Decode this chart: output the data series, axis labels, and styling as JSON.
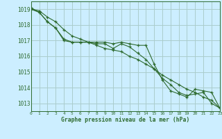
{
  "title": "Graphe pression niveau de la mer (hPa)",
  "background_color": "#cceeff",
  "grid_color": "#aacccc",
  "line_color": "#2d6a2d",
  "xlim": [
    0,
    23
  ],
  "ylim": [
    1012.5,
    1019.5
  ],
  "yticks": [
    1013,
    1014,
    1015,
    1016,
    1017,
    1018,
    1019
  ],
  "xticks": [
    0,
    1,
    2,
    3,
    4,
    5,
    6,
    7,
    8,
    9,
    10,
    11,
    12,
    13,
    14,
    15,
    16,
    17,
    18,
    19,
    20,
    21,
    22,
    23
  ],
  "series": [
    [
      1019.0,
      1018.8,
      1018.2,
      1017.8,
      1017.0,
      1016.9,
      1016.9,
      1016.9,
      1016.8,
      1016.8,
      1016.5,
      1016.8,
      1016.6,
      1016.2,
      1015.8,
      1015.2,
      1014.6,
      1014.2,
      1013.7,
      1013.5,
      1013.6,
      1013.7,
      1013.0,
      1012.7
    ],
    [
      1019.0,
      1018.9,
      1018.5,
      1018.2,
      1017.7,
      1017.3,
      1017.1,
      1016.9,
      1016.7,
      1016.5,
      1016.4,
      1016.3,
      1016.0,
      1015.8,
      1015.5,
      1015.2,
      1014.8,
      1014.5,
      1014.2,
      1013.9,
      1013.7,
      1013.4,
      1013.2,
      1012.7
    ],
    [
      1019.1,
      1018.8,
      1018.2,
      1017.8,
      1017.1,
      1016.9,
      1016.9,
      1016.9,
      1016.9,
      1016.9,
      1016.8,
      1016.9,
      1016.8,
      1016.7,
      1016.7,
      1015.5,
      1014.5,
      1013.8,
      1013.6,
      1013.4,
      1013.9,
      1013.8,
      1013.7,
      1012.7
    ]
  ]
}
